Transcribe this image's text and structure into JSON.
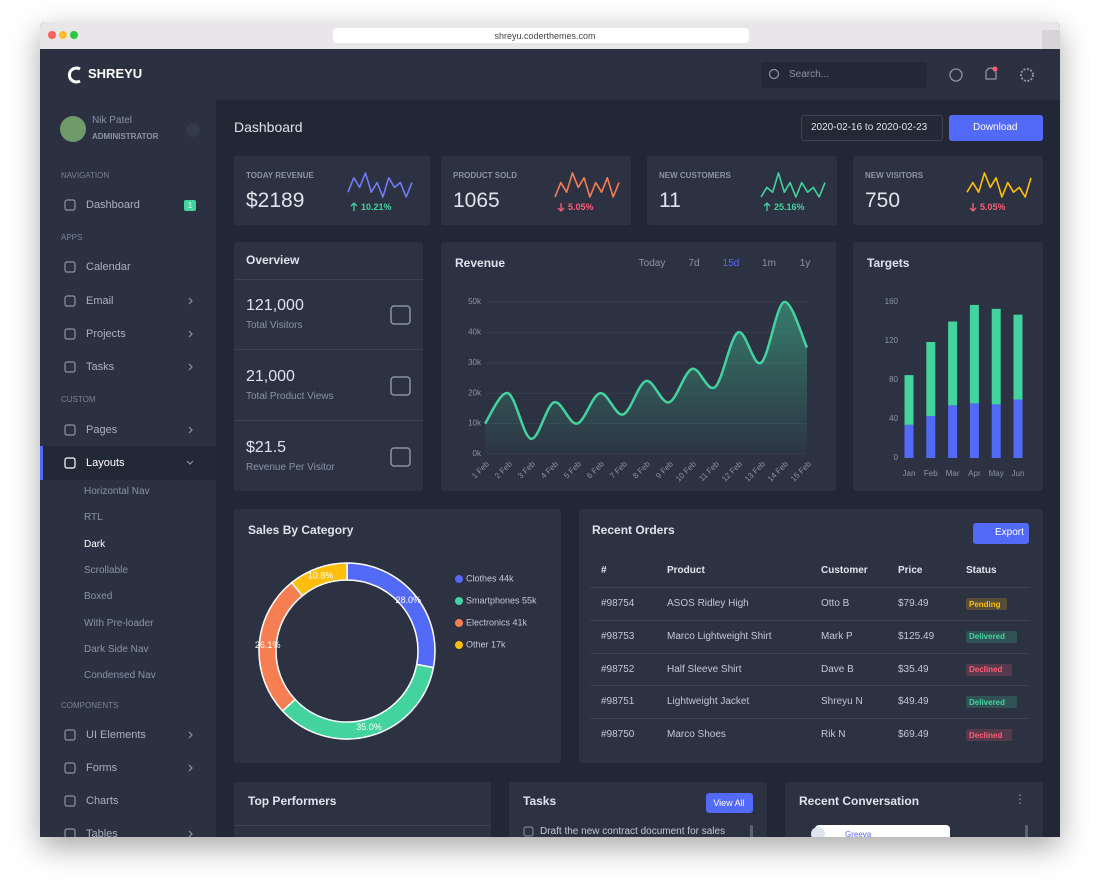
{
  "browser": {
    "url": "shreyu.coderthemes.com"
  },
  "topbar": {
    "brand": "SHREYU",
    "search": "Search..."
  },
  "sidebar": {
    "user": {
      "name": "Nik Patel",
      "role": "ADMINISTRATOR"
    },
    "sections": [
      {
        "title": "NAVIGATION",
        "items": [
          {
            "label": "Dashboard",
            "badge": "1"
          }
        ]
      },
      {
        "title": "APPS",
        "items": [
          {
            "label": "Calendar"
          },
          {
            "label": "Email",
            "submenu": true
          },
          {
            "label": "Projects",
            "submenu": true
          },
          {
            "label": "Tasks",
            "submenu": true
          }
        ]
      },
      {
        "title": "CUSTOM",
        "items": [
          {
            "label": "Pages",
            "submenu": true
          },
          {
            "label": "Layouts",
            "submenu": true,
            "active": true,
            "children": [
              {
                "label": "Horizontal Nav"
              },
              {
                "label": "RTL"
              },
              {
                "label": "Dark",
                "active": true
              },
              {
                "label": "Scrollable"
              },
              {
                "label": "Boxed"
              },
              {
                "label": "With Pre-loader"
              },
              {
                "label": "Dark Side Nav"
              },
              {
                "label": "Condensed Nav"
              }
            ]
          }
        ]
      },
      {
        "title": "COMPONENTS",
        "items": [
          {
            "label": "UI Elements",
            "submenu": true
          },
          {
            "label": "Forms",
            "submenu": true
          },
          {
            "label": "Charts"
          },
          {
            "label": "Tables",
            "submenu": true
          }
        ]
      }
    ]
  },
  "header": {
    "title": "Dashboard",
    "date_range": "2020-02-16 to 2020-02-23",
    "download": "Download"
  },
  "stats": [
    {
      "label": "TODAY REVENUE",
      "value": "$2189",
      "change": "10.21%",
      "direction": "up",
      "color": "#727cf5",
      "sparkline": [
        4,
        7,
        5,
        8,
        4,
        6,
        3,
        7,
        5,
        6,
        3,
        6
      ]
    },
    {
      "label": "PRODUCT SOLD",
      "value": "1065",
      "change": "5.05%",
      "direction": "down",
      "color": "#f77e53",
      "sparkline": [
        3,
        6,
        4,
        8,
        5,
        7,
        3,
        6,
        4,
        7,
        3,
        6
      ]
    },
    {
      "label": "NEW CUSTOMERS",
      "value": "11",
      "change": "25.16%",
      "direction": "up",
      "color": "#43d39e",
      "sparkline": [
        3,
        5,
        4,
        8,
        4,
        6,
        3,
        6,
        4,
        5,
        3,
        6
      ]
    },
    {
      "label": "NEW VISITORS",
      "value": "750",
      "change": "5.05%",
      "direction": "down",
      "color": "#ffbe0b",
      "sparkline": [
        4,
        6,
        4,
        8,
        5,
        7,
        3,
        6,
        4,
        5,
        3,
        7
      ]
    }
  ],
  "overview": {
    "title": "Overview",
    "items": [
      {
        "value": "121,000",
        "label": "Total Visitors"
      },
      {
        "value": "21,000",
        "label": "Total Product Views"
      },
      {
        "value": "$21.5",
        "label": "Revenue Per Visitor"
      }
    ]
  },
  "revenue": {
    "title": "Revenue",
    "tabs": [
      "Today",
      "7d",
      "15d",
      "1m",
      "1y"
    ],
    "active_tab": 2,
    "chart": {
      "type": "line",
      "color": "#43d39e",
      "categories": [
        "1 Feb",
        "2 Feb",
        "3 Feb",
        "4 Feb",
        "5 Feb",
        "6 Feb",
        "7 Feb",
        "8 Feb",
        "9 Feb",
        "10 Feb",
        "11 Feb",
        "12 Feb",
        "13 Feb",
        "14 Feb",
        "15 Feb"
      ],
      "values": [
        10000,
        20000,
        5000,
        17000,
        10000,
        20000,
        13000,
        24000,
        17000,
        28000,
        22000,
        40000,
        30000,
        50000,
        35000
      ],
      "ylim": [
        0,
        50000
      ],
      "yticks": [
        {
          "value": 0,
          "label": "0k"
        },
        {
          "value": 10000,
          "label": "10k"
        },
        {
          "value": 20000,
          "label": "20k"
        },
        {
          "value": 30000,
          "label": "30k"
        },
        {
          "value": 40000,
          "label": "40k"
        },
        {
          "value": 50000,
          "label": "50k"
        }
      ],
      "grid": true
    }
  },
  "targets": {
    "title": "Targets",
    "chart": {
      "type": "bar",
      "stacked": true,
      "categories": [
        "Jan",
        "Feb",
        "Mar",
        "Apr",
        "May",
        "Jun"
      ],
      "series": [
        {
          "color": "#5369f8",
          "values": [
            34,
            43,
            54,
            56,
            55,
            60
          ]
        },
        {
          "color": "#43d39e",
          "values": [
            51,
            76,
            86,
            101,
            98,
            87
          ]
        }
      ],
      "ylim": [
        0,
        160
      ],
      "yticks": [
        0,
        40,
        80,
        120,
        160
      ]
    }
  },
  "sales": {
    "title": "Sales By Category",
    "chart": {
      "type": "donut",
      "categories": [
        "Clothes 44k",
        "Smartphones 55k",
        "Electronics 41k",
        "Other 17k"
      ],
      "colors": [
        "#5369f8",
        "#43d39e",
        "#f77e53",
        "#ffbe0b"
      ],
      "values": [
        28.0,
        35.0,
        26.1,
        10.8
      ],
      "value_labels": [
        "28.0%",
        "35.0%",
        "26.1%",
        "10.8%"
      ]
    }
  },
  "orders": {
    "title": "Recent Orders",
    "export": "Export",
    "columns": [
      "#",
      "Product",
      "Customer",
      "Price",
      "Status"
    ],
    "rows": [
      [
        "#98754",
        "ASOS Ridley High",
        "Otto B",
        "$79.49",
        "Pending"
      ],
      [
        "#98753",
        "Marco Lightweight Shirt",
        "Mark P",
        "$125.49",
        "Delivered"
      ],
      [
        "#98752",
        "Half Sleeve Shirt",
        "Dave B",
        "$35.49",
        "Declined"
      ],
      [
        "#98751",
        "Lightweight Jacket",
        "Shreyu N",
        "$49.49",
        "Delivered"
      ],
      [
        "#98750",
        "Marco Shoes",
        "Rik N",
        "$69.49",
        "Declined"
      ]
    ],
    "status_colors": {
      "Pending": "#ffbe0b",
      "Delivered": "#43d39e",
      "Declined": "#ff5c75"
    }
  },
  "top_performers": {
    "title": "Top Performers"
  },
  "tasks": {
    "title": "Tasks",
    "view_all": "View All",
    "items": [
      "Draft the new contract document for sales"
    ]
  },
  "conversation": {
    "title": "Recent Conversation",
    "messages": [
      {
        "author": "Greeva"
      }
    ]
  }
}
